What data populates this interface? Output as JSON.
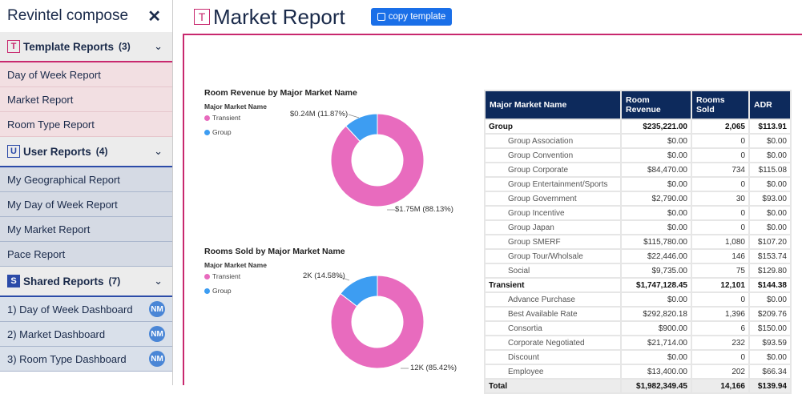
{
  "sidebar": {
    "title": "Revintel compose",
    "sections": [
      {
        "badge": "T",
        "label": "Template Reports",
        "count": "(3)",
        "items": [
          "Day of Week Report",
          "Market Report",
          "Room Type Report"
        ]
      },
      {
        "badge": "U",
        "label": "User Reports",
        "count": "(4)",
        "items": [
          "My Geographical Report",
          "My Day of Week Report",
          "My Market Report",
          "Pace Report"
        ]
      },
      {
        "badge": "S",
        "label": "Shared Reports",
        "count": "(7)",
        "items": [
          "1) Day of Week Dashboard",
          "2) Market Dashboard",
          "3) Room Type Dashboard"
        ],
        "item_badge": "NM"
      }
    ]
  },
  "header": {
    "badge": "T",
    "title": "Market Report",
    "copy_button": "copy template"
  },
  "colors": {
    "transient": "#e86bbe",
    "group": "#3d9df2",
    "accent": "#c8286e"
  },
  "chart_data": [
    {
      "type": "pie",
      "title": "Room Revenue by Major Market Name",
      "legend_title": "Major Market Name",
      "categories": [
        "Transient",
        "Group"
      ],
      "values": [
        1.75,
        0.24
      ],
      "labels": [
        "$1.75M (88.13%)",
        "$0.24M (11.87%)"
      ],
      "percents": [
        88.13,
        11.87
      ]
    },
    {
      "type": "pie",
      "title": "Rooms Sold by Major Market Name",
      "legend_title": "Major Market Name",
      "categories": [
        "Transient",
        "Group"
      ],
      "values": [
        12,
        2
      ],
      "labels": [
        "12K (85.42%)",
        "2K (14.58%)"
      ],
      "percents": [
        85.42,
        14.58
      ]
    }
  ],
  "table": {
    "headers": [
      "Major Market Name",
      "Room Revenue",
      "Rooms Sold",
      "ADR"
    ],
    "rows": [
      {
        "type": "grp",
        "cells": [
          "Group",
          "$235,221.00",
          "2,065",
          "$113.91"
        ]
      },
      {
        "type": "sub",
        "cells": [
          "Group Association",
          "$0.00",
          "0",
          "$0.00"
        ]
      },
      {
        "type": "sub",
        "cells": [
          "Group Convention",
          "$0.00",
          "0",
          "$0.00"
        ]
      },
      {
        "type": "sub",
        "cells": [
          "Group Corporate",
          "$84,470.00",
          "734",
          "$115.08"
        ]
      },
      {
        "type": "sub",
        "cells": [
          "Group Entertainment/Sports",
          "$0.00",
          "0",
          "$0.00"
        ]
      },
      {
        "type": "sub",
        "cells": [
          "Group Government",
          "$2,790.00",
          "30",
          "$93.00"
        ]
      },
      {
        "type": "sub",
        "cells": [
          "Group Incentive",
          "$0.00",
          "0",
          "$0.00"
        ]
      },
      {
        "type": "sub",
        "cells": [
          "Group Japan",
          "$0.00",
          "0",
          "$0.00"
        ]
      },
      {
        "type": "sub",
        "cells": [
          "Group SMERF",
          "$115,780.00",
          "1,080",
          "$107.20"
        ]
      },
      {
        "type": "sub",
        "cells": [
          "Group Tour/Wholsale",
          "$22,446.00",
          "146",
          "$153.74"
        ]
      },
      {
        "type": "sub",
        "cells": [
          "Social",
          "$9,735.00",
          "75",
          "$129.80"
        ]
      },
      {
        "type": "grp",
        "cells": [
          "Transient",
          "$1,747,128.45",
          "12,101",
          "$144.38"
        ]
      },
      {
        "type": "sub",
        "cells": [
          "Advance Purchase",
          "$0.00",
          "0",
          "$0.00"
        ]
      },
      {
        "type": "sub",
        "cells": [
          "Best Available Rate",
          "$292,820.18",
          "1,396",
          "$209.76"
        ]
      },
      {
        "type": "sub",
        "cells": [
          "Consortia",
          "$900.00",
          "6",
          "$150.00"
        ]
      },
      {
        "type": "sub",
        "cells": [
          "Corporate Negotiated",
          "$21,714.00",
          "232",
          "$93.59"
        ]
      },
      {
        "type": "sub",
        "cells": [
          "Discount",
          "$0.00",
          "0",
          "$0.00"
        ]
      },
      {
        "type": "sub",
        "cells": [
          "Employee",
          "$13,400.00",
          "202",
          "$66.34"
        ]
      },
      {
        "type": "tot",
        "cells": [
          "Total",
          "$1,982,349.45",
          "14,166",
          "$139.94"
        ]
      }
    ]
  }
}
